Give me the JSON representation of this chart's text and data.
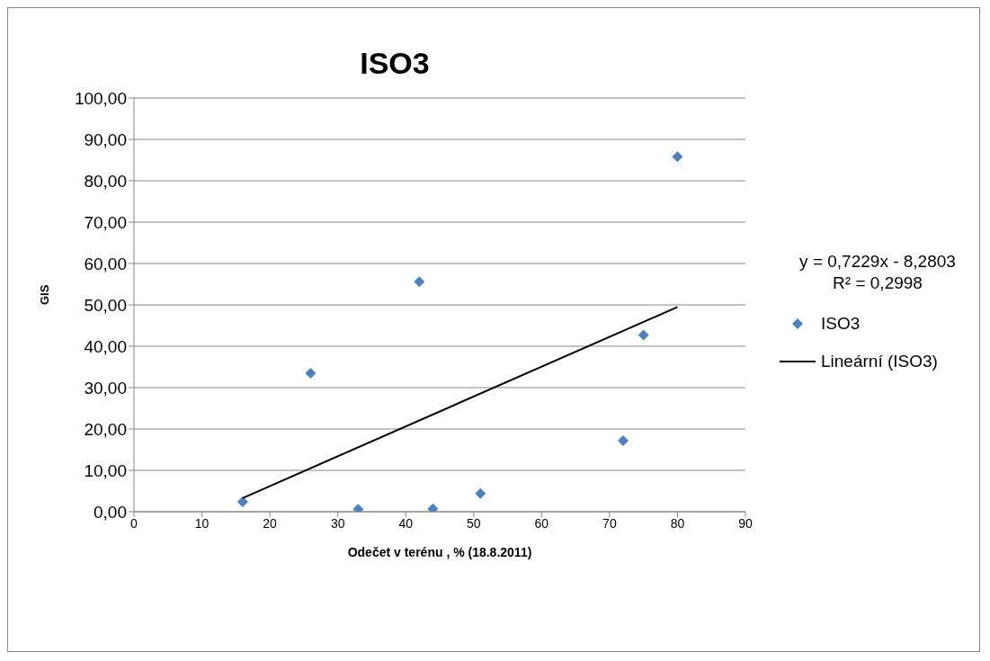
{
  "chart_data": {
    "type": "scatter",
    "title": "ISO3",
    "xlabel": "Odečet v terénu , % (18.8.2011)",
    "ylabel": "GIS",
    "xlim": [
      0,
      90
    ],
    "xticks": [
      0,
      10,
      20,
      30,
      40,
      50,
      60,
      70,
      80,
      90
    ],
    "ylim": [
      0,
      100
    ],
    "yticks": [
      {
        "value": 0,
        "label": "0,00"
      },
      {
        "value": 10,
        "label": "10,00"
      },
      {
        "value": 20,
        "label": "20,00"
      },
      {
        "value": 30,
        "label": "30,00"
      },
      {
        "value": 40,
        "label": "40,00"
      },
      {
        "value": 50,
        "label": "50,00"
      },
      {
        "value": 60,
        "label": "60,00"
      },
      {
        "value": 70,
        "label": "70,00"
      },
      {
        "value": 80,
        "label": "80,00"
      },
      {
        "value": 90,
        "label": "90,00"
      },
      {
        "value": 100,
        "label": "100,00"
      }
    ],
    "grid": "y",
    "legend": "right",
    "marker": "diamond",
    "series": [
      {
        "name": "ISO3",
        "type": "scatter",
        "color": "#4f81bd",
        "x": [
          16,
          26,
          33,
          42,
          44,
          51,
          72,
          75,
          80
        ],
        "values": [
          2.4,
          33.5,
          0.6,
          55.6,
          0.7,
          4.4,
          17.2,
          42.7,
          85.8
        ]
      },
      {
        "name": "Lineární (ISO3)",
        "type": "line",
        "marker": "none",
        "color": "#000000",
        "x": [
          16,
          80
        ],
        "values": [
          3.3,
          49.5
        ]
      }
    ],
    "annotations": [
      "y = 0,7229x - 8,2803",
      "R² = 0,2998"
    ]
  }
}
